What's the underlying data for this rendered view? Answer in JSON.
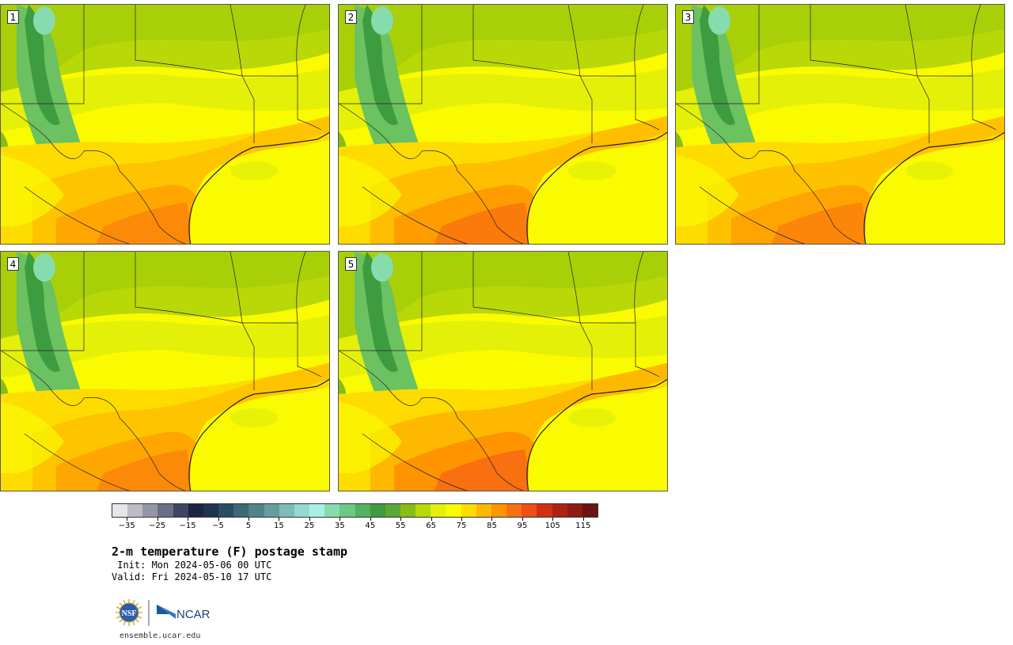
{
  "panels": [
    {
      "id": "1"
    },
    {
      "id": "2"
    },
    {
      "id": "3"
    },
    {
      "id": "4"
    },
    {
      "id": "5"
    }
  ],
  "colorbar": {
    "colors": [
      "#e6e7ea",
      "#bcbcc6",
      "#9597a6",
      "#6a6e86",
      "#3d4563",
      "#1c2442",
      "#1e3350",
      "#2a4c64",
      "#3c6878",
      "#508488",
      "#669e9e",
      "#7cbcb8",
      "#94d8d0",
      "#a8f0e4",
      "#86dcac",
      "#6cc884",
      "#52b25e",
      "#3e9c40",
      "#5aa834",
      "#88bc18",
      "#b8d808",
      "#e4f008",
      "#fafa00",
      "#ffdc00",
      "#ffb800",
      "#ff9400",
      "#f87010",
      "#ee5014",
      "#d03012",
      "#ae2212",
      "#8e1c12",
      "#6c1410"
    ],
    "tick_labels": [
      "−35",
      "−25",
      "−15",
      "−5",
      "5",
      "15",
      "25",
      "35",
      "45",
      "55",
      "65",
      "75",
      "85",
      "95",
      "105",
      "115"
    ],
    "range": [
      -40,
      120
    ]
  },
  "title": "2-m temperature (F) postage stamp",
  "init_line": " Init: Mon 2024-05-06 00 UTC",
  "valid_line": "Valid: Fri 2024-05-10 17 UTC",
  "logos": {
    "nsf": "NSF",
    "ncar": "NCAR"
  },
  "url": "ensemble.ucar.edu"
}
